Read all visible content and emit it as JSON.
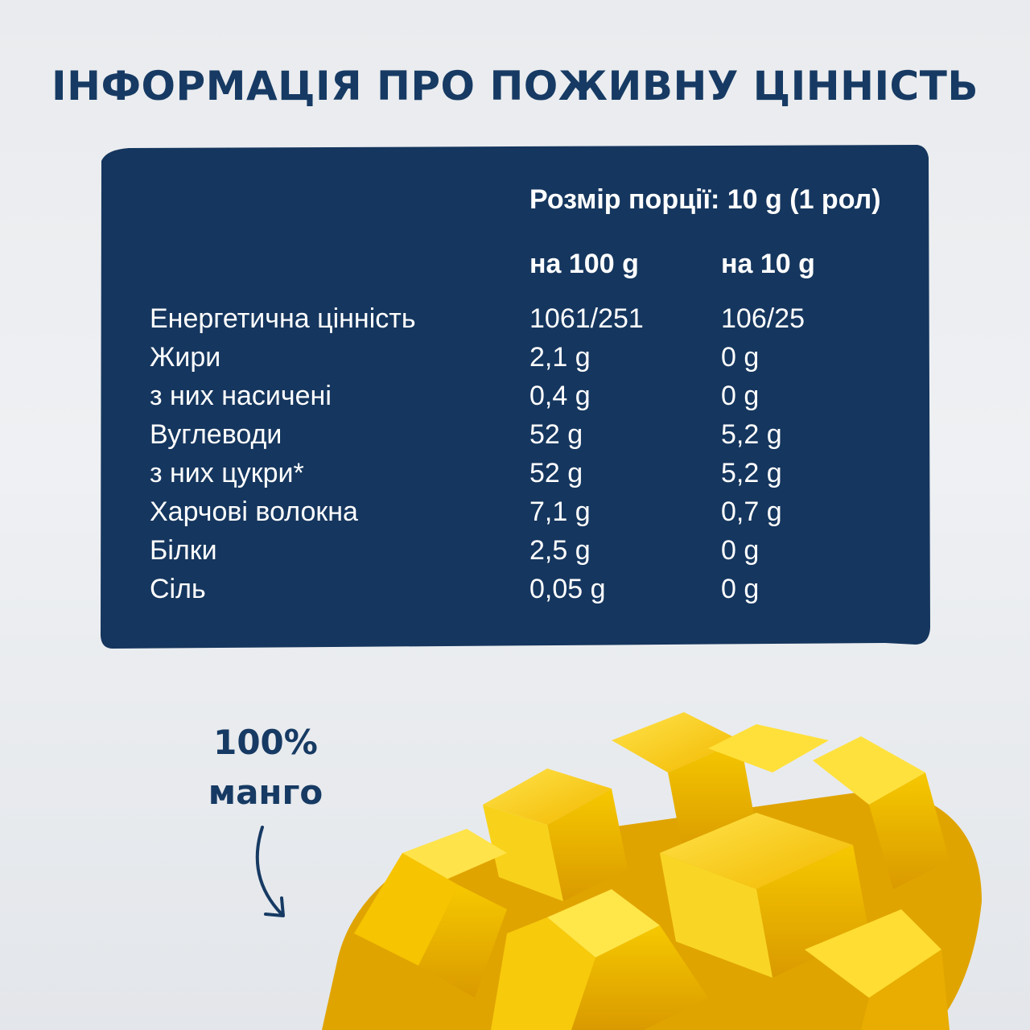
{
  "title": "ІНФОРМАЦІЯ ПРО ПОЖИВНУ ЦІННІСТЬ",
  "serving_size": "Розмір порції: 10 g (1 рол)",
  "columns": [
    "на 100 g",
    "на 10 g"
  ],
  "rows": [
    {
      "name": "Енергетична цінність",
      "per100": "1061/251",
      "per10": "106/25"
    },
    {
      "name": "Жири",
      "per100": "2,1 g",
      "per10": "0 g"
    },
    {
      "name": "з них насичені",
      "per100": "0,4 g",
      "per10": "0 g"
    },
    {
      "name": "Вуглеводи",
      "per100": "52 g",
      "per10": "5,2 g"
    },
    {
      "name": "з них цукри*",
      "per100": "52 g",
      "per10": "5,2 g"
    },
    {
      "name": "Харчові волокна",
      "per100": "7,1 g",
      "per10": "0,7 g"
    },
    {
      "name": "Білки",
      "per100": "2,5 g",
      "per10": "0 g"
    },
    {
      "name": "Сіль",
      "per100": "0,05 g",
      "per10": "0 g"
    }
  ],
  "badge": {
    "line1": "100%",
    "line2": "манго"
  },
  "colors": {
    "navy": "#15365e",
    "background": "#ebedf0",
    "mango": "#f7c500"
  },
  "icons": {
    "arrow": "curved-arrow-icon",
    "image": "mango-image"
  }
}
